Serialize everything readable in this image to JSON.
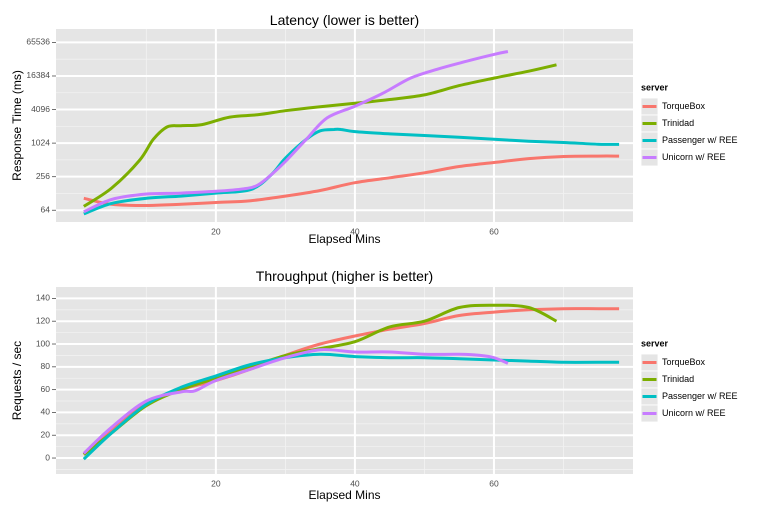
{
  "chart_data": [
    {
      "type": "line",
      "title": "Latency (lower is better)",
      "xlabel": "Elapsed Mins",
      "ylabel": "Response Time (ms)",
      "y_scale": "log2",
      "xlim": [
        -3,
        80
      ],
      "ylim_log2": [
        5.3,
        16.8
      ],
      "x_ticks": [
        20,
        40,
        60
      ],
      "x_tick_labels": [
        "20",
        "40",
        "60"
      ],
      "y_ticks": [
        64,
        256,
        1024,
        4096,
        16384,
        65536
      ],
      "y_tick_labels": [
        "64",
        "256",
        "1024",
        "4096",
        "16384",
        "65536"
      ],
      "grid": true,
      "legend": {
        "title": "server",
        "position": "right"
      },
      "series": [
        {
          "name": "TorqueBox",
          "color": "#F8766D",
          "points": [
            [
              1,
              105
            ],
            [
              5,
              82
            ],
            [
              10,
              78
            ],
            [
              15,
              82
            ],
            [
              20,
              88
            ],
            [
              25,
              95
            ],
            [
              30,
              115
            ],
            [
              35,
              145
            ],
            [
              40,
              200
            ],
            [
              45,
              245
            ],
            [
              50,
              300
            ],
            [
              55,
              390
            ],
            [
              60,
              460
            ],
            [
              65,
              540
            ],
            [
              70,
              590
            ],
            [
              75,
              600
            ],
            [
              78,
              600
            ]
          ]
        },
        {
          "name": "Trinidad",
          "color": "#7CAE00",
          "points": [
            [
              1,
              75
            ],
            [
              5,
              160
            ],
            [
              9,
              500
            ],
            [
              11,
              1200
            ],
            [
              13,
              2000
            ],
            [
              15,
              2100
            ],
            [
              18,
              2200
            ],
            [
              22,
              3000
            ],
            [
              26,
              3300
            ],
            [
              30,
              3900
            ],
            [
              35,
              4600
            ],
            [
              40,
              5300
            ],
            [
              45,
              6200
            ],
            [
              50,
              7500
            ],
            [
              55,
              11000
            ],
            [
              60,
              15000
            ],
            [
              65,
              20000
            ],
            [
              69,
              26000
            ]
          ]
        },
        {
          "name": "Passenger w/ REE",
          "color": "#00BFC4",
          "points": [
            [
              1,
              55
            ],
            [
              5,
              85
            ],
            [
              10,
              105
            ],
            [
              15,
              115
            ],
            [
              20,
              130
            ],
            [
              25,
              150
            ],
            [
              28,
              280
            ],
            [
              30,
              550
            ],
            [
              33,
              1200
            ],
            [
              35,
              1700
            ],
            [
              37,
              1800
            ],
            [
              38,
              1800
            ],
            [
              40,
              1650
            ],
            [
              45,
              1500
            ],
            [
              50,
              1400
            ],
            [
              55,
              1300
            ],
            [
              60,
              1200
            ],
            [
              65,
              1110
            ],
            [
              70,
              1050
            ],
            [
              75,
              980
            ],
            [
              78,
              970
            ]
          ]
        },
        {
          "name": "Unicorn w/ REE",
          "color": "#C77CFF",
          "points": [
            [
              1,
              60
            ],
            [
              5,
              100
            ],
            [
              10,
              125
            ],
            [
              15,
              130
            ],
            [
              20,
              140
            ],
            [
              24,
              155
            ],
            [
              26,
              180
            ],
            [
              28,
              280
            ],
            [
              30,
              480
            ],
            [
              33,
              1200
            ],
            [
              36,
              2900
            ],
            [
              40,
              4700
            ],
            [
              44,
              8000
            ],
            [
              48,
              15000
            ],
            [
              52,
              22000
            ],
            [
              56,
              30000
            ],
            [
              60,
              40000
            ],
            [
              62,
              45000
            ]
          ]
        }
      ]
    },
    {
      "type": "line",
      "title": "Throughput (higher is better)",
      "xlabel": "Elapsed Mins",
      "ylabel": "Requests / sec",
      "xlim": [
        -3,
        80
      ],
      "ylim": [
        -14,
        150
      ],
      "x_ticks": [
        20,
        40,
        60
      ],
      "x_tick_labels": [
        "20",
        "40",
        "60"
      ],
      "y_ticks": [
        0,
        20,
        40,
        60,
        80,
        100,
        120,
        140
      ],
      "y_tick_labels": [
        "0",
        "20",
        "40",
        "60",
        "80",
        "100",
        "120",
        "140"
      ],
      "grid": true,
      "legend": {
        "title": "server",
        "position": "right"
      },
      "series": [
        {
          "name": "TorqueBox",
          "color": "#F8766D",
          "points": [
            [
              1,
              3
            ],
            [
              5,
              25
            ],
            [
              10,
              48
            ],
            [
              15,
              60
            ],
            [
              20,
              68
            ],
            [
              25,
              78
            ],
            [
              30,
              90
            ],
            [
              35,
              100
            ],
            [
              40,
              107
            ],
            [
              45,
              113
            ],
            [
              50,
              118
            ],
            [
              55,
              125
            ],
            [
              60,
              128
            ],
            [
              65,
              130
            ],
            [
              70,
              131
            ],
            [
              75,
              131
            ],
            [
              78,
              131
            ]
          ]
        },
        {
          "name": "Trinidad",
          "color": "#7CAE00",
          "points": [
            [
              1,
              3
            ],
            [
              5,
              22
            ],
            [
              10,
              46
            ],
            [
              15,
              60
            ],
            [
              20,
              70
            ],
            [
              25,
              80
            ],
            [
              30,
              90
            ],
            [
              35,
              96
            ],
            [
              40,
              102
            ],
            [
              45,
              115
            ],
            [
              50,
              120
            ],
            [
              55,
              132
            ],
            [
              60,
              134
            ],
            [
              65,
              132
            ],
            [
              69,
              120
            ]
          ]
        },
        {
          "name": "Passenger w/ REE",
          "color": "#00BFC4",
          "points": [
            [
              1,
              -1
            ],
            [
              5,
              22
            ],
            [
              10,
              47
            ],
            [
              15,
              62
            ],
            [
              20,
              72
            ],
            [
              25,
              82
            ],
            [
              30,
              88
            ],
            [
              35,
              91
            ],
            [
              40,
              89
            ],
            [
              45,
              88
            ],
            [
              50,
              88
            ],
            [
              55,
              87
            ],
            [
              60,
              86
            ],
            [
              65,
              85
            ],
            [
              70,
              84
            ],
            [
              75,
              84
            ],
            [
              78,
              84
            ]
          ]
        },
        {
          "name": "Unicorn w/ REE",
          "color": "#C77CFF",
          "points": [
            [
              1,
              4
            ],
            [
              5,
              27
            ],
            [
              10,
              50
            ],
            [
              15,
              58
            ],
            [
              17,
              59
            ],
            [
              20,
              68
            ],
            [
              25,
              78
            ],
            [
              30,
              88
            ],
            [
              35,
              95
            ],
            [
              40,
              93
            ],
            [
              45,
              93
            ],
            [
              50,
              91
            ],
            [
              55,
              91
            ],
            [
              58,
              90
            ],
            [
              60,
              88
            ],
            [
              62,
              83
            ]
          ]
        }
      ]
    }
  ]
}
